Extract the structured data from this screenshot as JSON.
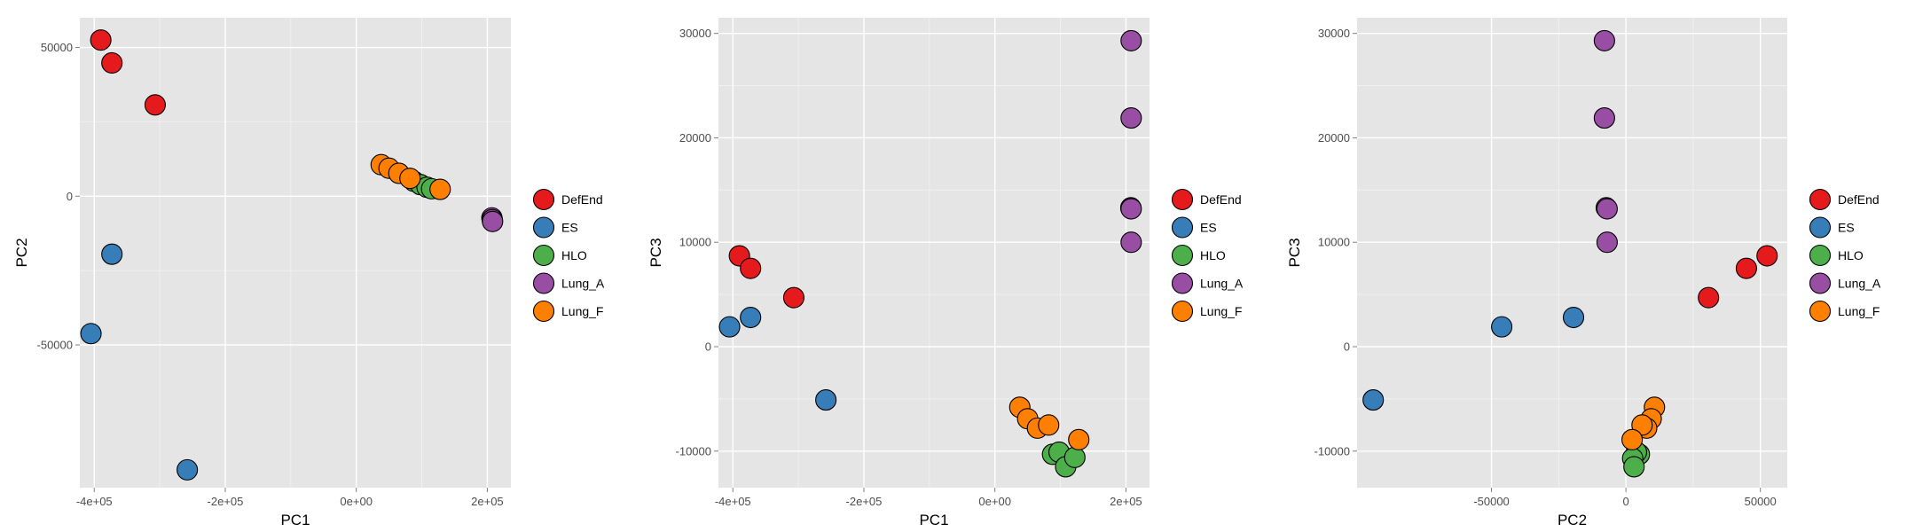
{
  "legend": {
    "items": [
      {
        "label": "DefEnd",
        "color": "#E41A1C"
      },
      {
        "label": "ES",
        "color": "#377EB8"
      },
      {
        "label": "HLO",
        "color": "#4DAF4A"
      },
      {
        "label": "Lung_A",
        "color": "#984EA3"
      },
      {
        "label": "Lung_F",
        "color": "#FF7F00"
      }
    ]
  },
  "chart_data": [
    {
      "type": "scatter",
      "xlabel": "PC1",
      "ylabel": "PC2",
      "xlim": [
        -422000,
        236000
      ],
      "ylim": [
        -98000,
        60000
      ],
      "xticks": [
        {
          "v": -400000,
          "label": "-4e+05"
        },
        {
          "v": -200000,
          "label": "-2e+05"
        },
        {
          "v": 0,
          "label": "0e+00"
        },
        {
          "v": 200000,
          "label": "2e+05"
        }
      ],
      "yticks": [
        {
          "v": -50000,
          "label": "-50000"
        },
        {
          "v": 0,
          "label": "0"
        },
        {
          "v": 50000,
          "label": "50000"
        }
      ],
      "grid": true,
      "legend_position": "right",
      "series": [
        {
          "name": "DefEnd",
          "points": [
            [
              -390000,
              52500
            ],
            [
              -373000,
              44800
            ],
            [
              -307000,
              30700
            ]
          ]
        },
        {
          "name": "ES",
          "points": [
            [
              -373000,
              -19500
            ],
            [
              -405000,
              -46200
            ],
            [
              -258000,
              -92000
            ]
          ]
        },
        {
          "name": "HLO",
          "points": [
            [
              88000,
              5000
            ],
            [
              98000,
              3900
            ],
            [
              108000,
              3000
            ],
            [
              115000,
              2500
            ]
          ]
        },
        {
          "name": "Lung_A",
          "points": [
            [
              207000,
              -7300
            ],
            [
              207500,
              -7900
            ],
            [
              208000,
              -8500
            ]
          ]
        },
        {
          "name": "Lung_F",
          "points": [
            [
              38000,
              10600
            ],
            [
              50000,
              9400
            ],
            [
              65000,
              7700
            ],
            [
              82000,
              6000
            ],
            [
              128000,
              2300
            ]
          ]
        }
      ]
    },
    {
      "type": "scatter",
      "xlabel": "PC1",
      "ylabel": "PC3",
      "xlim": [
        -422000,
        236000
      ],
      "ylim": [
        -13500,
        31500
      ],
      "xticks": [
        {
          "v": -400000,
          "label": "-4e+05"
        },
        {
          "v": -200000,
          "label": "-2e+05"
        },
        {
          "v": 0,
          "label": "0e+00"
        },
        {
          "v": 200000,
          "label": "2e+05"
        }
      ],
      "yticks": [
        {
          "v": -10000,
          "label": "-10000"
        },
        {
          "v": 0,
          "label": "0"
        },
        {
          "v": 10000,
          "label": "10000"
        },
        {
          "v": 20000,
          "label": "20000"
        },
        {
          "v": 30000,
          "label": "30000"
        }
      ],
      "grid": true,
      "legend_position": "right",
      "series": [
        {
          "name": "DefEnd",
          "points": [
            [
              -390000,
              8700
            ],
            [
              -373000,
              7500
            ],
            [
              -307000,
              4700
            ]
          ]
        },
        {
          "name": "ES",
          "points": [
            [
              -405000,
              1900
            ],
            [
              -373000,
              2800
            ],
            [
              -258000,
              -5100
            ]
          ]
        },
        {
          "name": "HLO",
          "points": [
            [
              88000,
              -10300
            ],
            [
              98000,
              -10100
            ],
            [
              108000,
              -11500
            ],
            [
              122000,
              -10600
            ]
          ]
        },
        {
          "name": "Lung_A",
          "points": [
            [
              208000,
              29300
            ],
            [
              208000,
              21900
            ],
            [
              207500,
              13300
            ],
            [
              208000,
              13200
            ],
            [
              208000,
              10000
            ]
          ]
        },
        {
          "name": "Lung_F",
          "points": [
            [
              38000,
              -5800
            ],
            [
              50000,
              -6900
            ],
            [
              65000,
              -7800
            ],
            [
              82000,
              -7500
            ],
            [
              128000,
              -8900
            ]
          ]
        }
      ]
    },
    {
      "type": "scatter",
      "xlabel": "PC2",
      "ylabel": "PC3",
      "xlim": [
        -100000,
        60000
      ],
      "ylim": [
        -13500,
        31500
      ],
      "xticks": [
        {
          "v": -50000,
          "label": "-50000"
        },
        {
          "v": 0,
          "label": "0"
        },
        {
          "v": 50000,
          "label": "50000"
        }
      ],
      "yticks": [
        {
          "v": -10000,
          "label": "-10000"
        },
        {
          "v": 0,
          "label": "0"
        },
        {
          "v": 10000,
          "label": "10000"
        },
        {
          "v": 20000,
          "label": "20000"
        },
        {
          "v": 30000,
          "label": "30000"
        }
      ],
      "grid": true,
      "legend_position": "right",
      "series": [
        {
          "name": "DefEnd",
          "points": [
            [
              52500,
              8700
            ],
            [
              44800,
              7500
            ],
            [
              30700,
              4700
            ]
          ]
        },
        {
          "name": "ES",
          "points": [
            [
              -94000,
              -5100
            ],
            [
              -46200,
              1900
            ],
            [
              -19500,
              2800
            ]
          ]
        },
        {
          "name": "HLO",
          "points": [
            [
              5000,
              -10300
            ],
            [
              3900,
              -10100
            ],
            [
              2500,
              -10700
            ],
            [
              3000,
              -11500
            ]
          ]
        },
        {
          "name": "Lung_A",
          "points": [
            [
              -8000,
              29300
            ],
            [
              -8000,
              21900
            ],
            [
              -7300,
              13300
            ],
            [
              -7000,
              13200
            ],
            [
              -7000,
              10000
            ]
          ]
        },
        {
          "name": "Lung_F",
          "points": [
            [
              10600,
              -5800
            ],
            [
              9400,
              -6900
            ],
            [
              7700,
              -7800
            ],
            [
              6000,
              -7500
            ],
            [
              2300,
              -8900
            ]
          ]
        }
      ]
    }
  ]
}
